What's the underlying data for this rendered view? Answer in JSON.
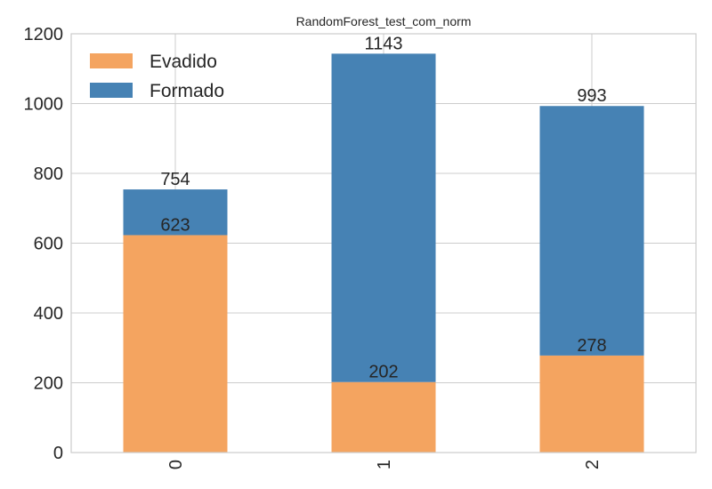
{
  "chart_data": {
    "type": "bar",
    "stacked": true,
    "title": "RandomForest_test_com_norm",
    "xlabel": "",
    "ylabel": "",
    "categories": [
      "0",
      "1",
      "2"
    ],
    "series": [
      {
        "name": "Evadido",
        "values": [
          623,
          202,
          278
        ],
        "color": "#f4a460"
      },
      {
        "name": "Formado",
        "values": [
          131,
          941,
          715
        ],
        "color": "#4682b4"
      }
    ],
    "segment_labels": [
      [
        "623",
        "754"
      ],
      [
        "202",
        "1143"
      ],
      [
        "278",
        "993"
      ]
    ],
    "ylim": [
      0,
      1200
    ],
    "yticks": [
      "0",
      "200",
      "400",
      "600",
      "800",
      "1000",
      "1200"
    ],
    "grid": true,
    "legend_position": "top-left",
    "x_tick_rotation": "vertical"
  }
}
